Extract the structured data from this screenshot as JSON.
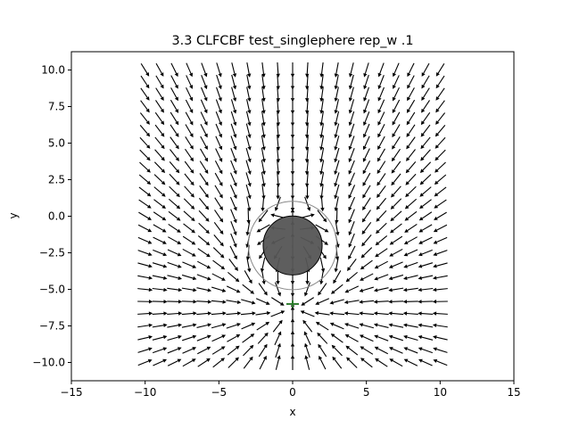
{
  "chart_data": {
    "type": "quiver",
    "title": "3.3 CLFCBF test_singlephere rep_w .1",
    "xlabel": "x",
    "ylabel": "y",
    "xlim": [
      -15,
      15
    ],
    "ylim": [
      -11.25,
      11.25
    ],
    "xticks": [
      -15,
      -10,
      -5,
      0,
      5,
      10,
      15
    ],
    "yticks": [
      -10.0,
      -7.5,
      -5.0,
      -2.5,
      0.0,
      2.5,
      5.0,
      7.5,
      10.0
    ],
    "xtick_labels": [
      "−15",
      "−10",
      "−5",
      "0",
      "5",
      "10",
      "15"
    ],
    "ytick_labels": [
      "−10.0",
      "−7.5",
      "−5.0",
      "−2.5",
      "0.0",
      "2.5",
      "5.0",
      "7.5",
      "10.0"
    ],
    "grid": false,
    "quiver": {
      "x_range": [
        -10,
        10
      ],
      "y_range": [
        -10,
        10
      ],
      "count_x": 21,
      "count_y": 25,
      "goal": [
        0,
        -6
      ],
      "color": "#000000"
    },
    "obstacle": {
      "center": [
        0,
        -2
      ],
      "radius": 2,
      "fill": "#555555",
      "edge": "#000000",
      "safety_radius": 3,
      "safety_color": "#888888"
    },
    "goal_marker": {
      "position": [
        0,
        -6
      ],
      "color": "#2a7a2a"
    }
  }
}
